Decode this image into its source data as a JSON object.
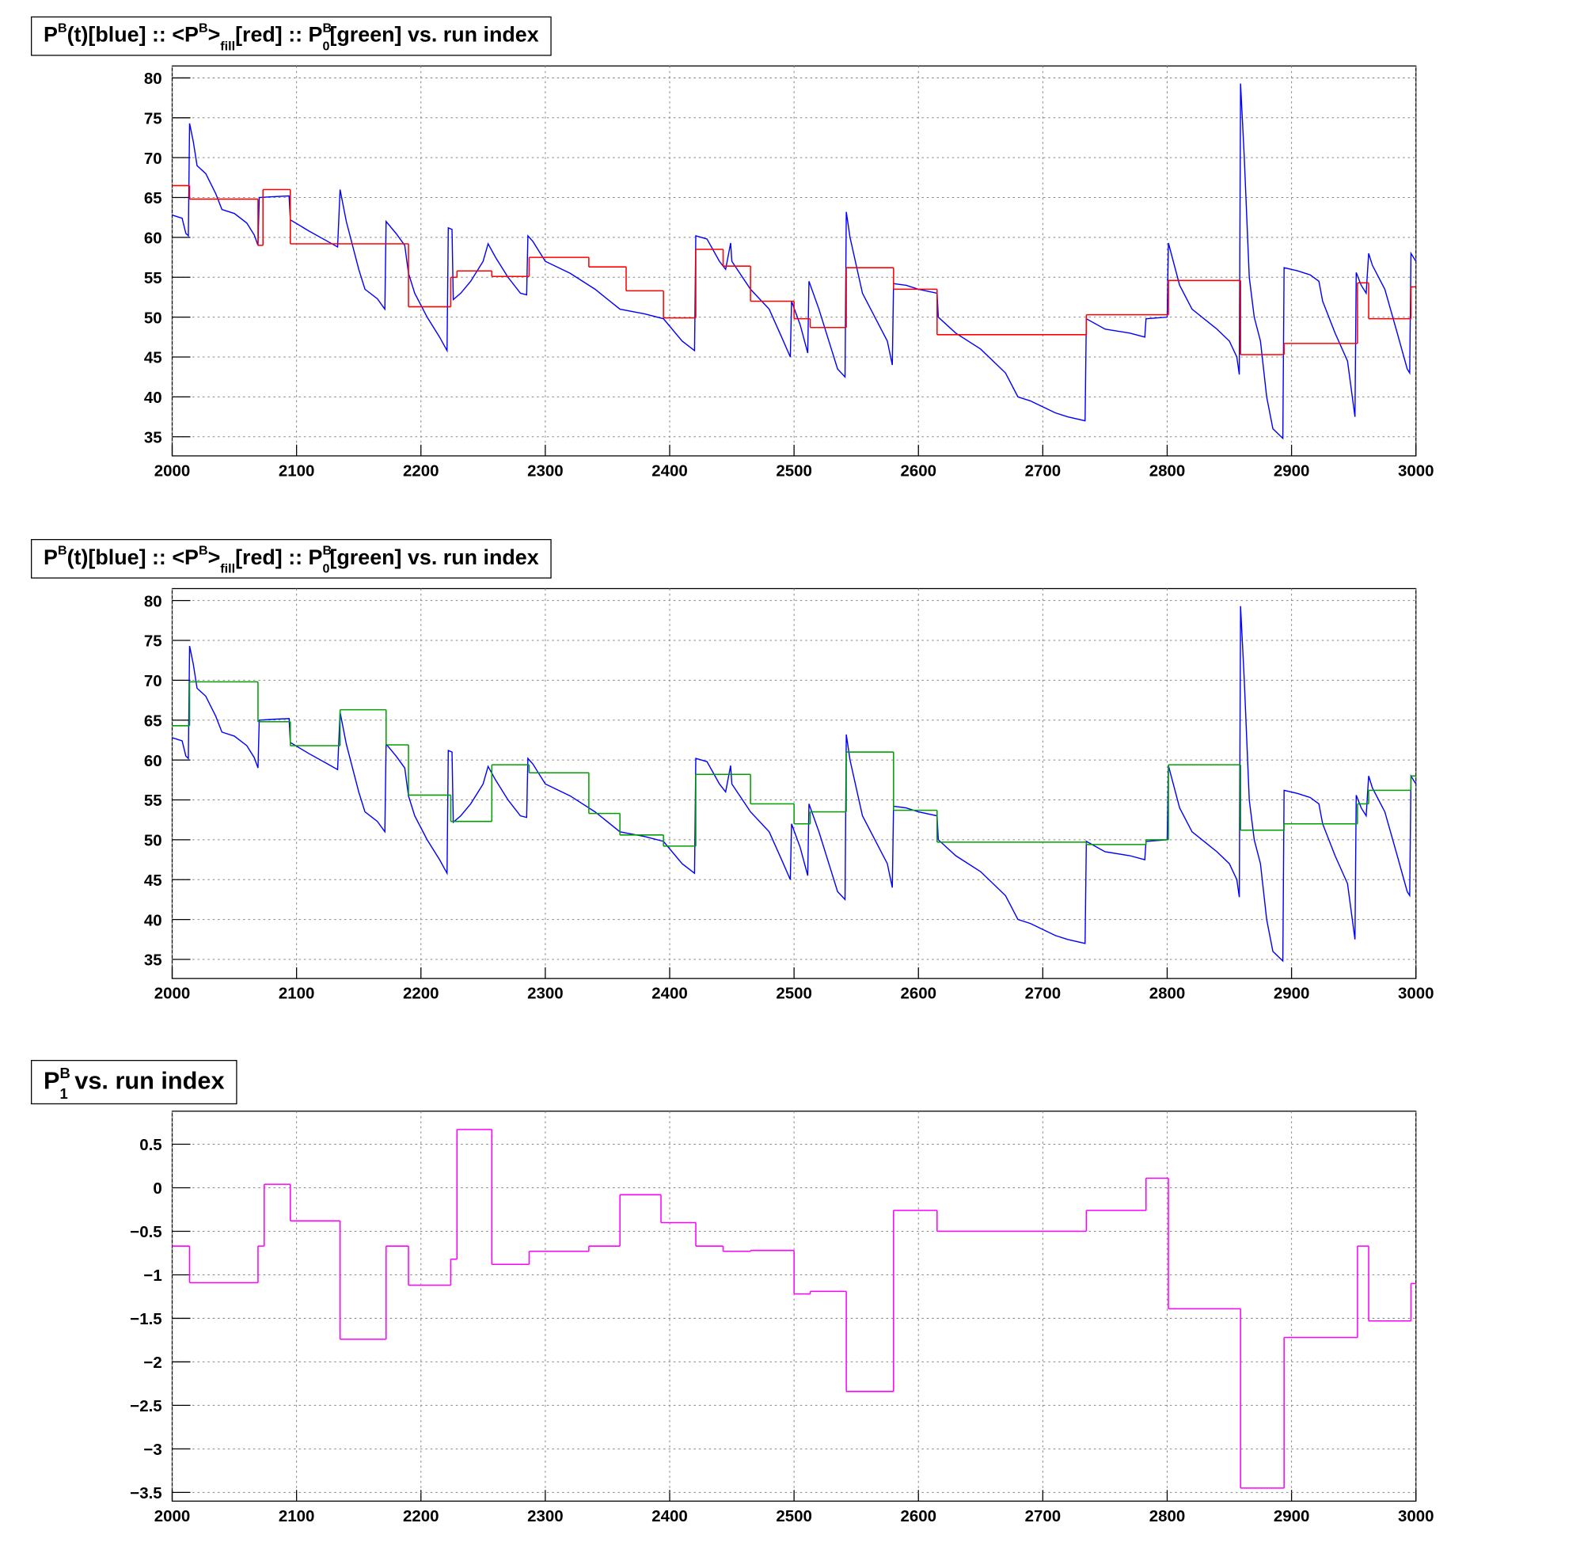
{
  "chart_data": [
    {
      "type": "step",
      "title": [
        {
          "text": "P"
        },
        {
          "text": "B",
          "pos": "sup"
        },
        {
          "text": "(t)[blue] :: <P"
        },
        {
          "text": "B",
          "pos": "sup"
        },
        {
          "text": ">"
        },
        {
          "text": "fill",
          "pos": "sub"
        },
        {
          "text": "[red] :: P"
        },
        {
          "text": "B",
          "pos": "sup"
        },
        {
          "text": "0",
          "pos": "sub"
        },
        {
          "text": "[green] vs. run index"
        }
      ],
      "xlim": [
        2000,
        3000
      ],
      "xticks": [
        2000,
        2100,
        2200,
        2300,
        2400,
        2500,
        2600,
        2700,
        2800,
        2900,
        3000
      ],
      "ylim": [
        32.6,
        81.5
      ],
      "yticks": [
        35,
        40,
        45,
        50,
        55,
        60,
        65,
        70,
        75,
        80
      ],
      "grid": true,
      "series": [
        {
          "color": "#0000ff",
          "x": [
            2000,
            2008,
            2011,
            2013,
            2014,
            2017,
            2020,
            2027,
            2035,
            2040,
            2050,
            2060,
            2066,
            2069,
            2070,
            2080,
            2094,
            2095,
            2110,
            2125,
            2133,
            2135,
            2140,
            2150,
            2155,
            2165,
            2171,
            2172,
            2180,
            2187,
            2190,
            2195,
            2205,
            2215,
            2221,
            2222,
            2225,
            2226,
            2232,
            2240,
            2250,
            2254,
            2260,
            2270,
            2280,
            2285,
            2286,
            2290,
            2300,
            2320,
            2340,
            2360,
            2380,
            2395,
            2410,
            2420,
            2421,
            2430,
            2440,
            2445,
            2449,
            2450,
            2465,
            2480,
            2490,
            2497,
            2498,
            2505,
            2511,
            2512,
            2520,
            2530,
            2535,
            2541,
            2542,
            2545,
            2555,
            2565,
            2575,
            2579,
            2580,
            2590,
            2600,
            2615,
            2616,
            2630,
            2650,
            2670,
            2680,
            2690,
            2710,
            2720,
            2734,
            2735,
            2750,
            2770,
            2782,
            2783,
            2800,
            2801,
            2810,
            2820,
            2840,
            2850,
            2856,
            2858,
            2859,
            2862,
            2866,
            2870,
            2875,
            2880,
            2885,
            2893,
            2894,
            2905,
            2915,
            2922,
            2925,
            2935,
            2945,
            2951,
            2952,
            2956,
            2960,
            2962,
            2965,
            2975,
            2985,
            2993,
            2995,
            2996,
            3000
          ],
          "values": [
            62.8,
            62.4,
            60.5,
            60.2,
            74.3,
            72,
            69,
            68,
            65.5,
            63.5,
            63,
            61.8,
            60.3,
            59,
            65,
            65.1,
            65.2,
            62.2,
            60.8,
            59.5,
            58.8,
            66,
            62,
            56,
            53.5,
            52.3,
            51,
            62,
            60.5,
            59,
            55.5,
            53,
            50,
            47.5,
            45.8,
            61.2,
            61,
            52.2,
            53,
            54.5,
            57,
            59.2,
            57.5,
            55,
            53,
            52.8,
            60.2,
            59.5,
            57,
            55.5,
            53.5,
            51,
            50.4,
            49.8,
            47,
            45.8,
            60.2,
            59.8,
            57,
            56,
            59.3,
            57,
            53.5,
            51,
            47.5,
            45,
            52,
            49,
            45.5,
            54.5,
            51,
            46,
            43.5,
            42.5,
            63.2,
            60,
            53,
            50,
            47,
            44,
            54.2,
            54,
            53.5,
            53,
            50,
            48,
            46,
            43,
            40,
            39.5,
            38,
            37.5,
            37,
            49.8,
            48.5,
            48,
            47.5,
            49.8,
            50,
            59.3,
            54,
            51,
            48.5,
            47,
            45,
            42.8,
            79.3,
            70,
            55,
            50,
            47,
            40,
            36,
            34.8,
            56.2,
            55.8,
            55.3,
            54.5,
            52,
            48,
            44.5,
            37.5,
            55.6,
            54,
            53,
            58,
            56.5,
            53.5,
            48,
            43.5,
            43,
            58,
            57
          ]
        },
        {
          "color": "#ff0000",
          "bins": [
            2000,
            2014,
            2069,
            2073,
            2095,
            2190,
            2224,
            2229,
            2257,
            2287,
            2335,
            2365,
            2395,
            2421,
            2443,
            2465,
            2500,
            2513,
            2542,
            2580,
            2615,
            2735,
            2801,
            2859,
            2894,
            2953,
            2962,
            2996,
            3000
          ],
          "values": [
            66.5,
            64.8,
            59,
            66,
            59.2,
            51.3,
            55,
            55.8,
            55.1,
            57.5,
            56.3,
            53.3,
            49.9,
            58.5,
            56.4,
            52,
            49.8,
            48.7,
            56.2,
            53.5,
            47.8,
            50.3,
            54.6,
            45.3,
            46.7,
            54.3,
            49.8,
            53.8
          ]
        }
      ]
    },
    {
      "type": "step",
      "title": [
        {
          "text": "P"
        },
        {
          "text": "B",
          "pos": "sup"
        },
        {
          "text": "(t)[blue] :: <P"
        },
        {
          "text": "B",
          "pos": "sup"
        },
        {
          "text": ">"
        },
        {
          "text": "fill",
          "pos": "sub"
        },
        {
          "text": "[red] :: P"
        },
        {
          "text": "B",
          "pos": "sup"
        },
        {
          "text": "0",
          "pos": "sub"
        },
        {
          "text": "[green] vs. run index"
        }
      ],
      "xlim": [
        2000,
        3000
      ],
      "xticks": [
        2000,
        2100,
        2200,
        2300,
        2400,
        2500,
        2600,
        2700,
        2800,
        2900,
        3000
      ],
      "ylim": [
        32.6,
        81.5
      ],
      "yticks": [
        35,
        40,
        45,
        50,
        55,
        60,
        65,
        70,
        75,
        80
      ],
      "grid": true,
      "series": [
        {
          "color": "#0000ff",
          "x": [
            2000,
            2008,
            2011,
            2013,
            2014,
            2017,
            2020,
            2027,
            2035,
            2040,
            2050,
            2060,
            2066,
            2069,
            2070,
            2080,
            2094,
            2095,
            2110,
            2125,
            2133,
            2135,
            2140,
            2150,
            2155,
            2165,
            2171,
            2172,
            2180,
            2187,
            2190,
            2195,
            2205,
            2215,
            2221,
            2222,
            2225,
            2226,
            2232,
            2240,
            2250,
            2254,
            2260,
            2270,
            2280,
            2285,
            2286,
            2290,
            2300,
            2320,
            2340,
            2360,
            2380,
            2395,
            2410,
            2420,
            2421,
            2430,
            2440,
            2445,
            2449,
            2450,
            2465,
            2480,
            2490,
            2497,
            2498,
            2505,
            2511,
            2512,
            2520,
            2530,
            2535,
            2541,
            2542,
            2545,
            2555,
            2565,
            2575,
            2579,
            2580,
            2590,
            2600,
            2615,
            2616,
            2630,
            2650,
            2670,
            2680,
            2690,
            2710,
            2720,
            2734,
            2735,
            2750,
            2770,
            2782,
            2783,
            2800,
            2801,
            2810,
            2820,
            2840,
            2850,
            2856,
            2858,
            2859,
            2862,
            2866,
            2870,
            2875,
            2880,
            2885,
            2893,
            2894,
            2905,
            2915,
            2922,
            2925,
            2935,
            2945,
            2951,
            2952,
            2956,
            2960,
            2962,
            2965,
            2975,
            2985,
            2993,
            2995,
            2996,
            3000
          ],
          "values": [
            62.8,
            62.4,
            60.5,
            60.2,
            74.3,
            72,
            69,
            68,
            65.5,
            63.5,
            63,
            61.8,
            60.3,
            59,
            65,
            65.1,
            65.2,
            62.2,
            60.8,
            59.5,
            58.8,
            66,
            62,
            56,
            53.5,
            52.3,
            51,
            62,
            60.5,
            59,
            55.5,
            53,
            50,
            47.5,
            45.8,
            61.2,
            61,
            52.2,
            53,
            54.5,
            57,
            59.2,
            57.5,
            55,
            53,
            52.8,
            60.2,
            59.5,
            57,
            55.5,
            53.5,
            51,
            50.4,
            49.8,
            47,
            45.8,
            60.2,
            59.8,
            57,
            56,
            59.3,
            57,
            53.5,
            51,
            47.5,
            45,
            52,
            49,
            45.5,
            54.5,
            51,
            46,
            43.5,
            42.5,
            63.2,
            60,
            53,
            50,
            47,
            44,
            54.2,
            54,
            53.5,
            53,
            50,
            48,
            46,
            43,
            40,
            39.5,
            38,
            37.5,
            37,
            49.8,
            48.5,
            48,
            47.5,
            49.8,
            50,
            59.3,
            54,
            51,
            48.5,
            47,
            45,
            42.8,
            79.3,
            70,
            55,
            50,
            47,
            40,
            36,
            34.8,
            56.2,
            55.8,
            55.3,
            54.5,
            52,
            48,
            44.5,
            37.5,
            55.6,
            54,
            53,
            58,
            56.5,
            53.5,
            48,
            43.5,
            43,
            58,
            57
          ]
        },
        {
          "color": "#00a000",
          "bins": [
            2000,
            2014,
            2069,
            2095,
            2135,
            2172,
            2190,
            2224,
            2257,
            2287,
            2335,
            2360,
            2395,
            2421,
            2465,
            2500,
            2513,
            2542,
            2580,
            2615,
            2735,
            2783,
            2801,
            2859,
            2894,
            2953,
            2962,
            2996,
            3000
          ],
          "values": [
            64.3,
            69.8,
            64.8,
            61.8,
            66.3,
            61.9,
            55.6,
            52.3,
            59.4,
            58.4,
            53.3,
            50.6,
            49.2,
            58.2,
            54.5,
            52,
            53.5,
            61,
            53.7,
            49.7,
            49.4,
            50,
            59.4,
            51.2,
            52,
            54.5,
            56.2,
            58
          ]
        }
      ]
    },
    {
      "type": "step",
      "title": [
        {
          "text": "P"
        },
        {
          "text": "B",
          "pos": "sup"
        },
        {
          "text": "1",
          "pos": "sub"
        },
        {
          "text": " vs. run index"
        }
      ],
      "xlim": [
        2000,
        3000
      ],
      "xticks": [
        2000,
        2100,
        2200,
        2300,
        2400,
        2500,
        2600,
        2700,
        2800,
        2900,
        3000
      ],
      "ylim": [
        -3.6,
        0.88
      ],
      "yticks": [
        {
          "value": -3.5,
          "label": "−3.5"
        },
        {
          "value": -3,
          "label": "−3"
        },
        {
          "value": -2.5,
          "label": "−2.5"
        },
        {
          "value": -2,
          "label": "−2"
        },
        {
          "value": -1.5,
          "label": "−1.5"
        },
        {
          "value": -1,
          "label": "−1"
        },
        {
          "value": -0.5,
          "label": "−0.5"
        },
        0,
        0.5
      ],
      "grid": true,
      "series": [
        {
          "color": "#ff00ff",
          "bins": [
            2000,
            2014,
            2069,
            2074,
            2095,
            2135,
            2172,
            2190,
            2224,
            2229,
            2257,
            2287,
            2335,
            2360,
            2393,
            2421,
            2443,
            2465,
            2500,
            2513,
            2542,
            2580,
            2615,
            2735,
            2783,
            2801,
            2859,
            2894,
            2953,
            2962,
            2996,
            3000
          ],
          "values": [
            -0.67,
            -1.09,
            -0.67,
            0.04,
            -0.38,
            -1.74,
            -0.67,
            -1.12,
            -0.82,
            0.67,
            -0.88,
            -0.73,
            -0.67,
            -0.08,
            -0.4,
            -0.67,
            -0.73,
            -0.72,
            -1.22,
            -1.19,
            -2.34,
            -0.26,
            -0.5,
            -0.26,
            0.11,
            -1.39,
            -3.45,
            -1.72,
            -0.67,
            -1.53,
            -1.1
          ]
        }
      ]
    }
  ]
}
